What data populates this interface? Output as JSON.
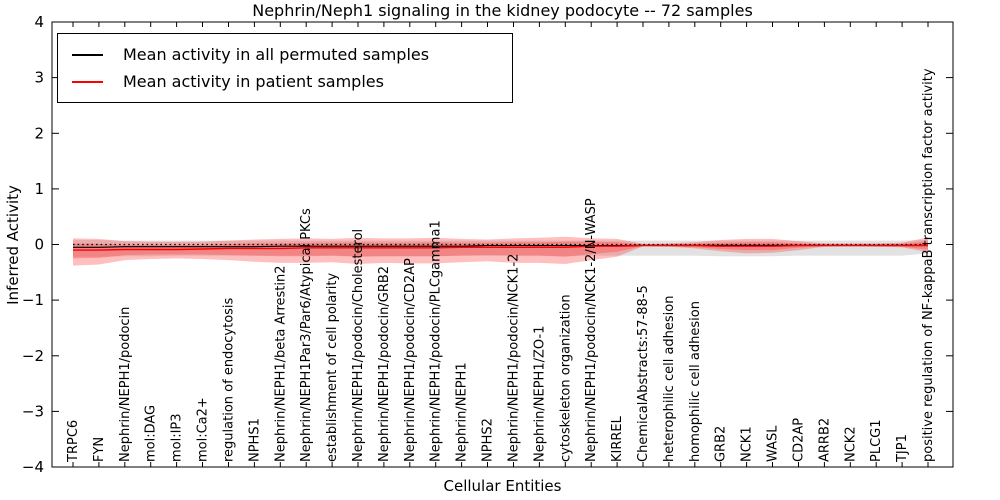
{
  "title": "Nephrin/Neph1 signaling in the kidney podocyte -- 72 samples",
  "legend": {
    "items": [
      {
        "label": "Mean activity in all permuted samples",
        "color": "#000000"
      },
      {
        "label": "Mean activity in patient samples",
        "color": "#ff0000"
      }
    ]
  },
  "chart_data": {
    "type": "line",
    "title": "Nephrin/Neph1 signaling in the kidney podocyte -- 72 samples",
    "xlabel": "Cellular Entities",
    "ylabel": "Inferred Activity",
    "ylim": [
      -4,
      4
    ],
    "yticks": [
      -4,
      -3,
      -2,
      -1,
      0,
      1,
      2,
      3,
      4
    ],
    "ytick_labels": [
      "−4",
      "−3",
      "−2",
      "−1",
      "0",
      "1",
      "2",
      "3",
      "4"
    ],
    "grid": false,
    "legend_position": "upper left",
    "zero_line": {
      "value": 0,
      "style": "dotted",
      "color": "#000000"
    },
    "categories": [
      "TRPC6",
      "FYN",
      "Nephrin/NEPH1/podocin",
      "mol:DAG",
      "mol:IP3",
      "mol:Ca2+",
      "regulation of endocytosis",
      "NPHS1",
      "Nephrin/NEPH1/beta Arrestin2",
      "Nephrin/NEPH1Par3/Par6/Atypical PKCs",
      "establishment of cell polarity",
      "Nephrin/NEPH1/podocin/Cholesterol",
      "Nephrin/NEPH1/podocin/GRB2",
      "Nephrin/NEPH1/podocin/CD2AP",
      "Nephrin/NEPH1/podocin/PLCgamma1",
      "Nephrin/NEPH1",
      "NPHS2",
      "Nephrin/NEPH1/podocin/NCK1-2",
      "Nephrin/NEPH1/ZO-1",
      "cytoskeleton organization",
      "Nephrin/NEPH1/podocin/NCK1-2/N-WASP",
      "KIRREL",
      "ChemicalAbstracts:57-88-5",
      "heterophilic cell adhesion",
      "homophilic cell adhesion",
      "GRB2",
      "NCK1",
      "WASL",
      "CD2AP",
      "ARRB2",
      "NCK2",
      "PLCG1",
      "TJP1",
      "positive regulation of NF-kappaB transcription factor activity"
    ],
    "series": [
      {
        "name": "Mean activity in all permuted samples",
        "color": "#000000",
        "style": "solid",
        "values": [
          -0.05,
          -0.05,
          -0.04,
          -0.04,
          -0.04,
          -0.04,
          -0.04,
          -0.04,
          -0.03,
          -0.03,
          -0.03,
          -0.03,
          -0.03,
          -0.03,
          -0.03,
          -0.03,
          -0.02,
          -0.02,
          -0.02,
          -0.02,
          -0.02,
          -0.02,
          -0.015,
          -0.015,
          -0.015,
          -0.015,
          -0.015,
          -0.015,
          -0.015,
          -0.015,
          -0.015,
          -0.015,
          -0.015,
          -0.015
        ]
      },
      {
        "name": "Mean activity in patient samples",
        "color": "#ff0000",
        "style": "solid",
        "values": [
          -0.1,
          -0.1,
          -0.09,
          -0.09,
          -0.09,
          -0.08,
          -0.07,
          -0.07,
          -0.07,
          -0.06,
          -0.06,
          -0.06,
          -0.06,
          -0.06,
          -0.06,
          -0.05,
          -0.05,
          -0.05,
          -0.05,
          -0.05,
          -0.03,
          -0.03,
          -0.02,
          -0.02,
          -0.02,
          -0.03,
          -0.03,
          -0.03,
          -0.02,
          -0.02,
          -0.02,
          -0.02,
          -0.02,
          -0.02
        ]
      }
    ],
    "bands": [
      {
        "name": "permuted-range",
        "color": "#bbbbbb",
        "opacity": 0.42,
        "top": [
          0.08,
          0.08,
          0.07,
          0.07,
          0.07,
          0.07,
          0.07,
          0.07,
          0.07,
          0.07,
          0.07,
          0.07,
          0.07,
          0.07,
          0.07,
          0.07,
          0.07,
          0.07,
          0.07,
          0.07,
          0.07,
          0.07,
          0.07,
          0.07,
          0.07,
          0.07,
          0.07,
          0.07,
          0.07,
          0.07,
          0.07,
          0.07,
          0.07,
          0.08
        ],
        "bottom": [
          -0.22,
          -0.22,
          -0.21,
          -0.21,
          -0.2,
          -0.2,
          -0.2,
          -0.2,
          -0.2,
          -0.2,
          -0.2,
          -0.21,
          -0.21,
          -0.21,
          -0.21,
          -0.2,
          -0.2,
          -0.2,
          -0.2,
          -0.21,
          -0.2,
          -0.2,
          -0.2,
          -0.2,
          -0.2,
          -0.21,
          -0.21,
          -0.21,
          -0.2,
          -0.2,
          -0.2,
          -0.2,
          -0.2,
          -0.16
        ]
      },
      {
        "name": "patient-range-outer",
        "color": "#ff2a2a",
        "opacity": 0.3,
        "top": [
          0.11,
          0.1,
          0.06,
          0.05,
          0.05,
          0.05,
          0.07,
          0.09,
          0.1,
          0.11,
          0.1,
          0.12,
          0.11,
          0.11,
          0.12,
          0.1,
          0.09,
          0.11,
          0.12,
          0.14,
          0.11,
          0.1,
          0.01,
          0.02,
          0.04,
          0.08,
          0.1,
          0.1,
          0.06,
          0.02,
          0.02,
          0.02,
          0.03,
          0.13
        ],
        "bottom": [
          -0.38,
          -0.36,
          -0.28,
          -0.26,
          -0.25,
          -0.26,
          -0.28,
          -0.31,
          -0.33,
          -0.33,
          -0.32,
          -0.35,
          -0.33,
          -0.34,
          -0.34,
          -0.32,
          -0.3,
          -0.33,
          -0.33,
          -0.35,
          -0.28,
          -0.22,
          -0.03,
          -0.04,
          -0.07,
          -0.12,
          -0.16,
          -0.15,
          -0.1,
          -0.04,
          -0.03,
          -0.04,
          -0.05,
          -0.14
        ]
      },
      {
        "name": "patient-range-inner",
        "color": "#ff2a2a",
        "opacity": 0.3,
        "top": [
          0.02,
          0.01,
          -0.01,
          -0.01,
          -0.01,
          -0.01,
          0.01,
          0.02,
          0.02,
          0.03,
          0.03,
          0.04,
          0.03,
          0.03,
          0.04,
          0.03,
          0.03,
          0.04,
          0.04,
          0.05,
          0.05,
          0.04,
          0.0,
          0.0,
          0.01,
          0.03,
          0.04,
          0.04,
          0.02,
          0.0,
          0.0,
          0.0,
          0.01,
          0.06
        ],
        "bottom": [
          -0.25,
          -0.24,
          -0.19,
          -0.18,
          -0.18,
          -0.18,
          -0.19,
          -0.2,
          -0.21,
          -0.21,
          -0.2,
          -0.22,
          -0.21,
          -0.21,
          -0.21,
          -0.2,
          -0.19,
          -0.2,
          -0.2,
          -0.22,
          -0.17,
          -0.13,
          -0.03,
          -0.03,
          -0.05,
          -0.08,
          -0.1,
          -0.1,
          -0.06,
          -0.03,
          -0.03,
          -0.03,
          -0.04,
          -0.09
        ]
      }
    ]
  }
}
